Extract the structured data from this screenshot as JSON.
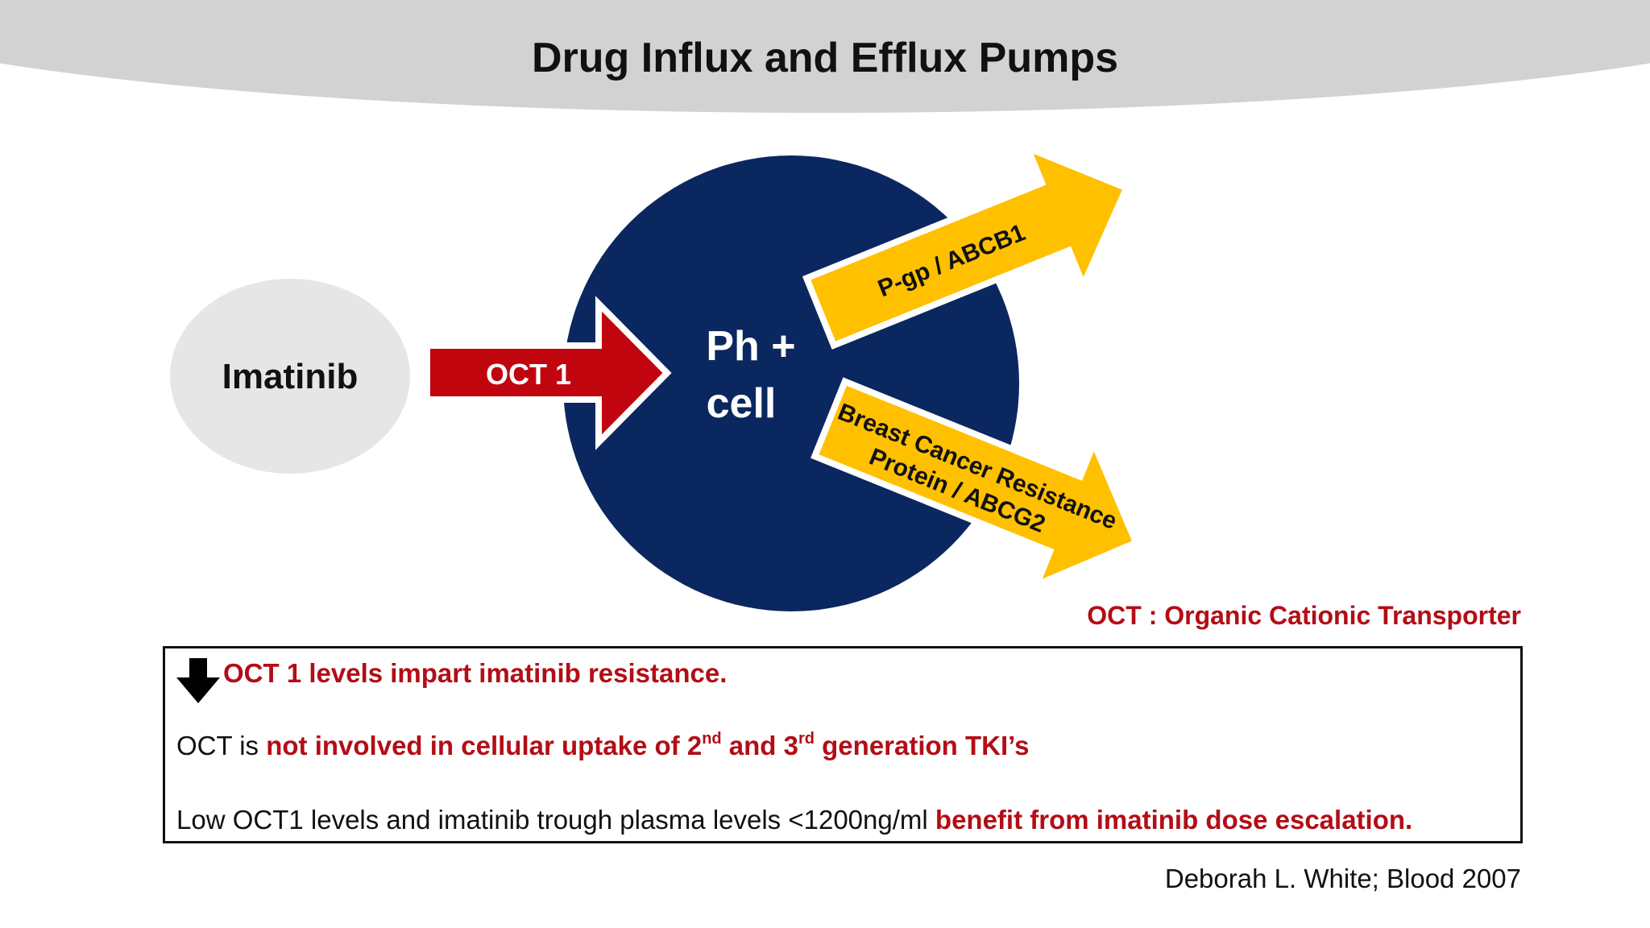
{
  "slide": {
    "title": "Drug Influx and Efflux Pumps"
  },
  "diagram": {
    "drug_label": "Imatinib",
    "influx_label": "OCT 1",
    "cell_label_line1": "Ph +",
    "cell_label_line2": "cell",
    "efflux_top_label": "P-gp / ABCB1",
    "efflux_bottom_line1": "Breast Cancer Resistance",
    "efflux_bottom_line2": "Protein / ABCG2",
    "colors": {
      "cell": "#0b2760",
      "drug_bubble": "#e6e6e6",
      "influx_arrow": "#c0050f",
      "efflux_arrow": "#ffc000",
      "emphasis_text": "#b30d16"
    }
  },
  "legend_note": "OCT : Organic Cationic Transporter",
  "findings": {
    "line1": {
      "icon": "down-arrow-icon",
      "text": "OCT 1 levels impart imatinib resistance."
    },
    "line2": {
      "prefix": "OCT is ",
      "emph_a": "not involved in cellular uptake of 2",
      "sup_a": "nd",
      "emph_b": " and 3",
      "sup_b": "rd",
      "emph_c": " generation TKI’s"
    },
    "line3": {
      "prefix": "Low OCT1 levels and imatinib trough plasma levels <1200ng/ml ",
      "emph": "benefit from imatinib dose escalation."
    }
  },
  "citation": "Deborah L. White; Blood 2007"
}
